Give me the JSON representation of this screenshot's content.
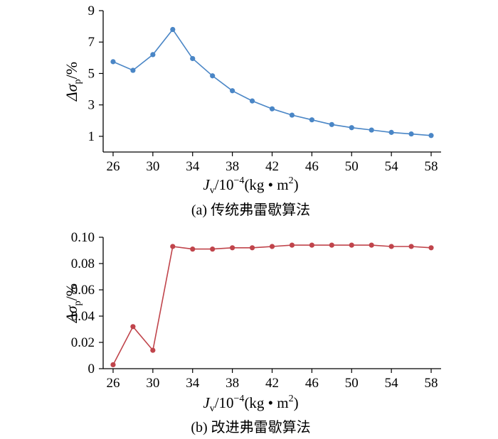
{
  "chart_data": [
    {
      "type": "line",
      "caption": "(a)  传统弗雷歇算法",
      "xlabel": {
        "main": "J",
        "sub": "v",
        "rest": "/10",
        "sup": "−4",
        "unit": "(kg • m",
        "unit_sup": "2",
        "close": ")"
      },
      "ylabel": {
        "main": "Δσ",
        "sub": "p",
        "rest": "/%"
      },
      "x_ticks": [
        26,
        30,
        34,
        38,
        42,
        46,
        50,
        54,
        58
      ],
      "y_ticks": [
        "1",
        "3",
        "5",
        "7",
        "9"
      ],
      "xlim": [
        25,
        59
      ],
      "ylim": [
        0,
        9
      ],
      "color": "#4a86c6",
      "series": [
        {
          "x": [
            26,
            28,
            30,
            32,
            34,
            36,
            38,
            40,
            42,
            44,
            46,
            48,
            50,
            52,
            54,
            56,
            58
          ],
          "values": [
            5.75,
            5.2,
            6.2,
            7.8,
            5.95,
            4.85,
            3.9,
            3.25,
            2.75,
            2.35,
            2.05,
            1.75,
            1.55,
            1.4,
            1.25,
            1.15,
            1.05
          ]
        }
      ]
    },
    {
      "type": "line",
      "caption": "(b)  改进弗雷歇算法",
      "xlabel": {
        "main": "J",
        "sub": "v",
        "rest": "/10",
        "sup": "−4",
        "unit": "(kg • m",
        "unit_sup": "2",
        "close": ")"
      },
      "ylabel": {
        "main": "Δσ",
        "sub": "p",
        "rest": "/%"
      },
      "x_ticks": [
        26,
        30,
        34,
        38,
        42,
        46,
        50,
        54,
        58
      ],
      "y_ticks": [
        "0",
        "0.02",
        "0.04",
        "0.06",
        "0.08",
        "0.10"
      ],
      "xlim": [
        25,
        59
      ],
      "ylim": [
        0,
        0.1
      ],
      "color": "#c0444b",
      "series": [
        {
          "x": [
            26,
            28,
            30,
            32,
            34,
            36,
            38,
            40,
            42,
            44,
            46,
            48,
            50,
            52,
            54,
            56,
            58
          ],
          "values": [
            0.003,
            0.032,
            0.014,
            0.093,
            0.091,
            0.091,
            0.092,
            0.092,
            0.093,
            0.094,
            0.094,
            0.094,
            0.094,
            0.094,
            0.093,
            0.093,
            0.092
          ]
        }
      ]
    }
  ]
}
